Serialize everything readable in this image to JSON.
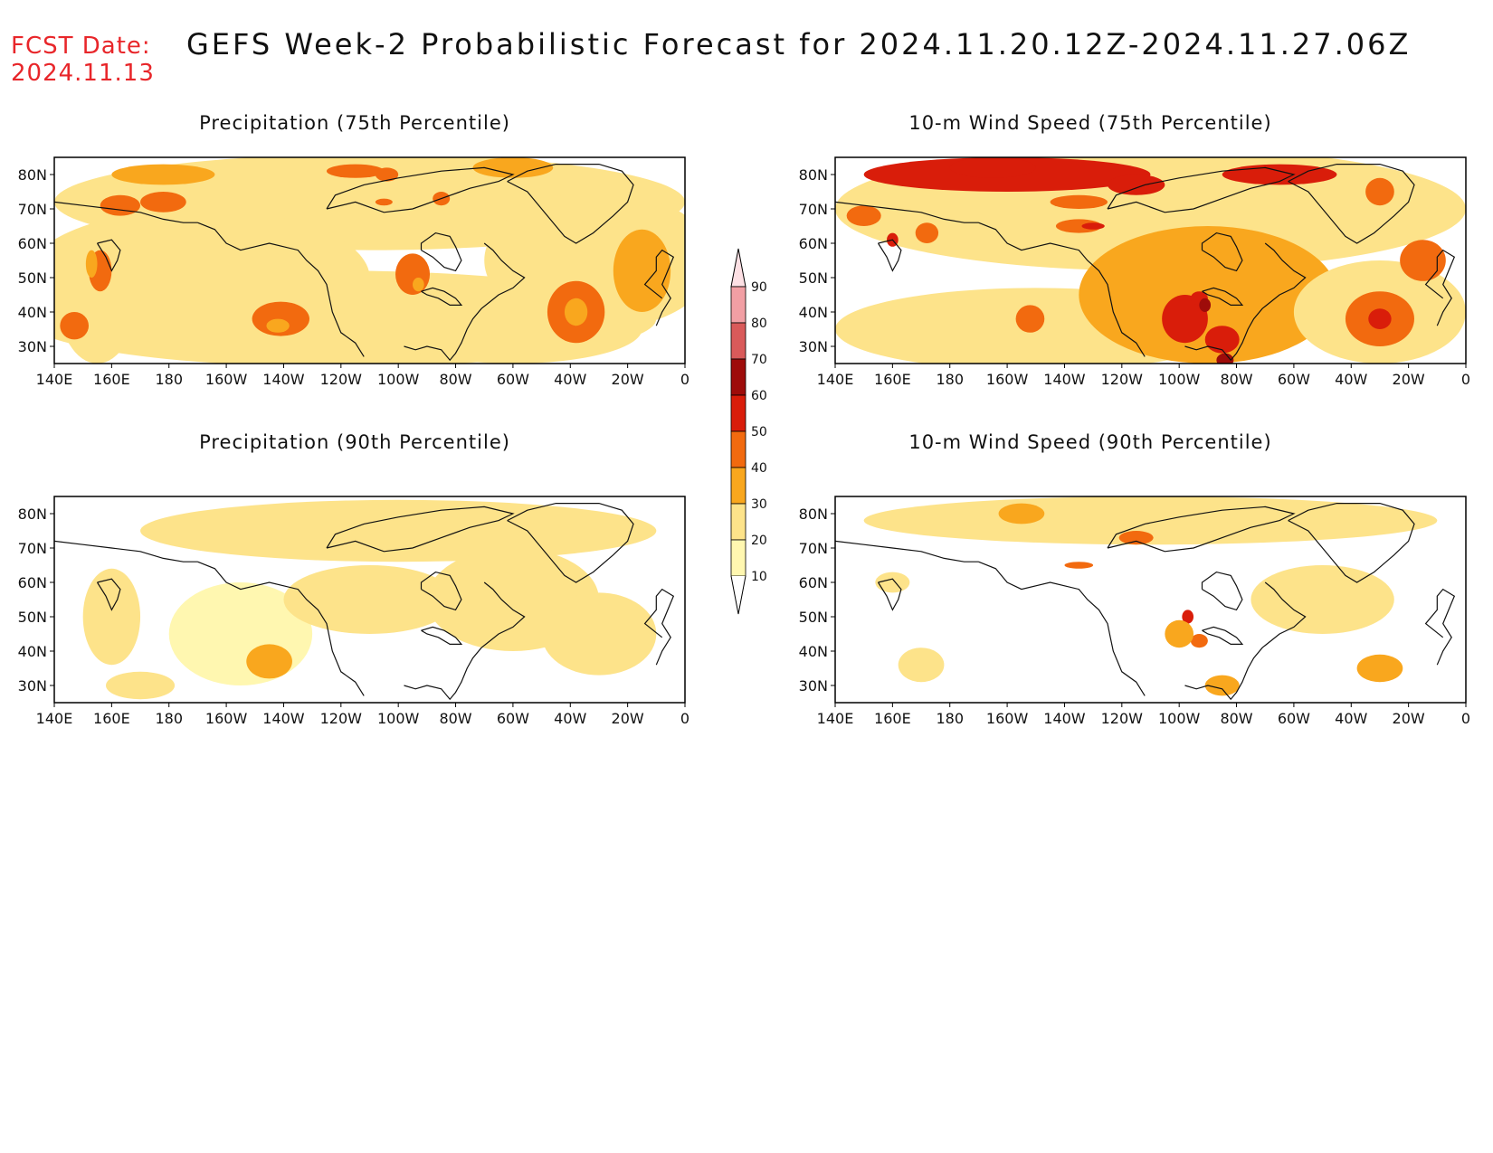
{
  "header": {
    "fcst_label": "FCST Date:",
    "fcst_date": "2024.11.13",
    "title": "GEFS Week-2 Probabilistic Forecast for 2024.11.20.12Z-2024.11.27.06Z"
  },
  "panels": [
    {
      "id": "precip75",
      "title": "Precipitation (75th Percentile)"
    },
    {
      "id": "wind75",
      "title": "10-m Wind Speed (75th Percentile)"
    },
    {
      "id": "precip90",
      "title": "Precipitation (90th Percentile)"
    },
    {
      "id": "wind90",
      "title": "10-m Wind Speed (90th Percentile)"
    }
  ],
  "axes": {
    "lat_labels": [
      "80N",
      "70N",
      "60N",
      "50N",
      "40N",
      "30N"
    ],
    "lon_labels": [
      "140E",
      "160E",
      "180",
      "160W",
      "140W",
      "120W",
      "100W",
      "80W",
      "60W",
      "40W",
      "20W",
      "0"
    ]
  },
  "colorbar": {
    "levels": [
      "10",
      "20",
      "30",
      "40",
      "50",
      "60",
      "70",
      "80",
      "90"
    ],
    "colors": [
      "#fff7b0",
      "#fde38a",
      "#f9a71e",
      "#f26a0f",
      "#d91d0a",
      "#9e0c0a",
      "#d95a5a",
      "#f29fa4",
      "#fde0e4"
    ]
  }
}
